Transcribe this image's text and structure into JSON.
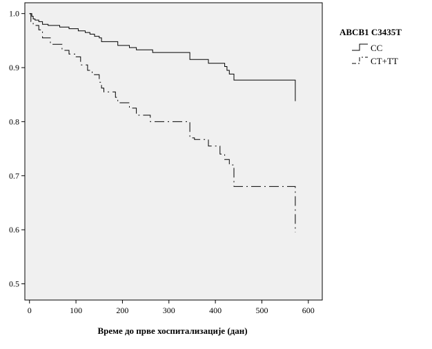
{
  "chart_data": {
    "type": "line",
    "subtype": "kaplan-meier-step",
    "xlabel": "Време до прве хоспитализације (дан)",
    "ylabel": "",
    "xlim": [
      -10,
      630
    ],
    "ylim": [
      0.47,
      1.02
    ],
    "xticks": [
      0,
      100,
      200,
      300,
      400,
      500,
      600
    ],
    "yticks": [
      0.5,
      0.6,
      0.7,
      0.8,
      0.9,
      1.0
    ],
    "xtick_labels": [
      "0",
      "100",
      "200",
      "300",
      "400",
      "500",
      "600"
    ],
    "ytick_labels": [
      "0.5",
      "0.6",
      "0.7",
      "0.8",
      "0.9",
      "1.0"
    ],
    "grid": false,
    "plot_background": "#f0f0f0",
    "legend": {
      "title": "ABCB1 C3435T",
      "placement": "right",
      "entries": [
        "CC",
        "CT+TT"
      ]
    },
    "series": [
      {
        "name": "CC",
        "line_style": "solid",
        "x": [
          0,
          5,
          8,
          12,
          20,
          28,
          40,
          65,
          85,
          105,
          120,
          130,
          140,
          150,
          155,
          190,
          215,
          230,
          265,
          345,
          385,
          420,
          425,
          430,
          440,
          572,
          572
        ],
        "y": [
          1.0,
          0.995,
          0.99,
          0.988,
          0.985,
          0.98,
          0.978,
          0.975,
          0.972,
          0.968,
          0.965,
          0.962,
          0.958,
          0.955,
          0.948,
          0.941,
          0.937,
          0.933,
          0.928,
          0.915,
          0.908,
          0.902,
          0.895,
          0.888,
          0.877,
          0.877,
          0.838
        ]
      },
      {
        "name": "CT+TT",
        "line_style": "dash-dot",
        "x": [
          0,
          3,
          8,
          20,
          28,
          45,
          70,
          85,
          100,
          110,
          125,
          135,
          150,
          155,
          160,
          185,
          190,
          215,
          230,
          260,
          345,
          355,
          385,
          410,
          420,
          430,
          440,
          572,
          572,
          572,
          572
        ],
        "y": [
          1.0,
          0.985,
          0.978,
          0.97,
          0.955,
          0.943,
          0.932,
          0.925,
          0.92,
          0.905,
          0.895,
          0.887,
          0.873,
          0.862,
          0.855,
          0.845,
          0.835,
          0.825,
          0.812,
          0.8,
          0.77,
          0.767,
          0.755,
          0.74,
          0.73,
          0.72,
          0.68,
          0.68,
          0.665,
          0.64,
          0.595
        ]
      }
    ]
  }
}
